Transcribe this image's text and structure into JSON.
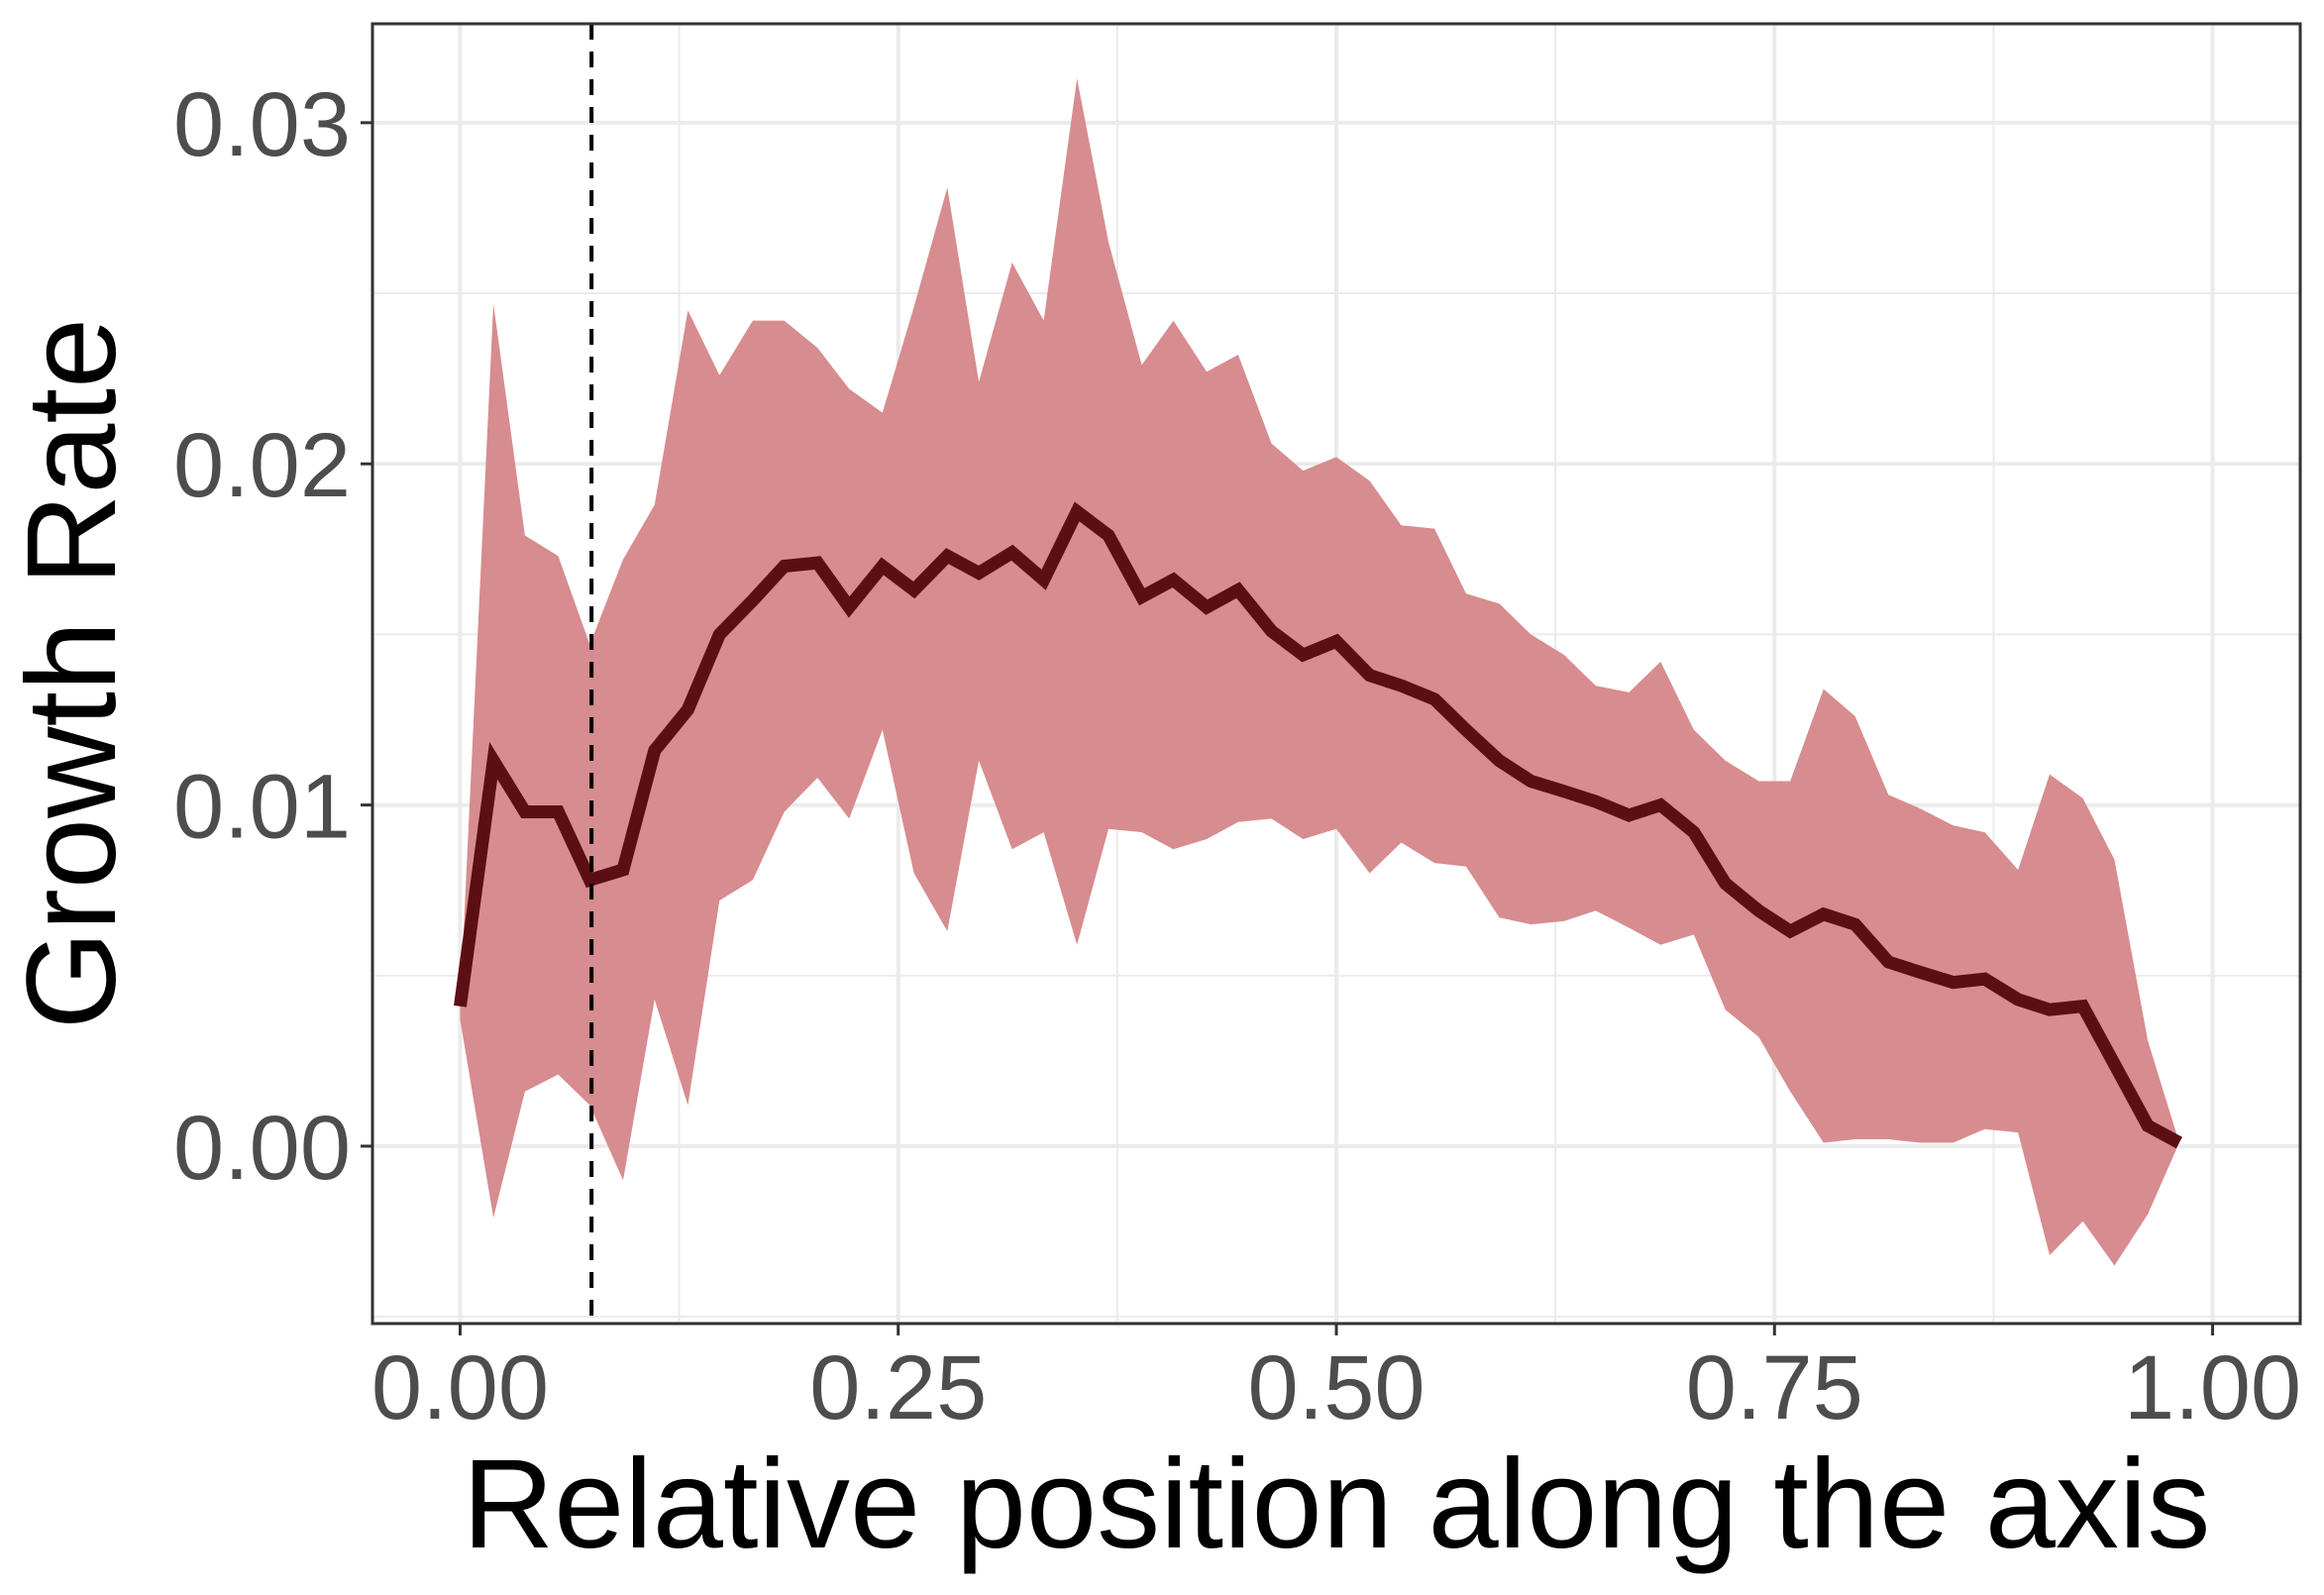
{
  "chart_data": {
    "type": "line",
    "xlabel": "Relative position along the axis",
    "ylabel": "Growth Rate",
    "xlim": [
      -0.05,
      1.05
    ],
    "ylim": [
      -0.0052,
      0.0329
    ],
    "x_ticks": [
      0,
      0.25,
      0.5,
      0.75,
      1
    ],
    "x_tick_labels": [
      "0.00",
      "0.25",
      "0.50",
      "0.75",
      "1.00"
    ],
    "y_ticks": [
      0,
      0.01,
      0.02,
      0.03
    ],
    "y_tick_labels": [
      "0.00",
      "0.01",
      "0.02",
      "0.03"
    ],
    "grid": true,
    "vline_x": 0.075,
    "colors": {
      "line": "#5c0f12",
      "band": "#d78c8f",
      "vline": "#000000",
      "grid": "#ebebeb"
    },
    "series": [
      {
        "x": [
          0,
          0.019,
          0.037,
          0.056,
          0.074,
          0.093,
          0.111,
          0.13,
          0.148,
          0.167,
          0.185,
          0.204,
          0.222,
          0.241,
          0.259,
          0.278,
          0.296,
          0.315,
          0.333,
          0.352,
          0.37,
          0.389,
          0.407,
          0.426,
          0.444,
          0.463,
          0.481,
          0.5,
          0.519,
          0.537,
          0.556,
          0.574,
          0.593,
          0.611,
          0.63,
          0.648,
          0.667,
          0.685,
          0.704,
          0.722,
          0.741,
          0.759,
          0.778,
          0.796,
          0.815,
          0.833,
          0.852,
          0.87,
          0.889,
          0.907,
          0.926,
          0.944,
          0.963,
          0.981,
          1.0
        ],
        "y": [
          0.0041,
          0.0113,
          0.0098,
          0.0098,
          0.0078,
          0.0081,
          0.0116,
          0.0128,
          0.015,
          0.016,
          0.017,
          0.0171,
          0.0158,
          0.017,
          0.0163,
          0.0173,
          0.0168,
          0.0174,
          0.0166,
          0.0186,
          0.0179,
          0.0161,
          0.0166,
          0.0158,
          0.0163,
          0.0151,
          0.0144,
          0.0148,
          0.0138,
          0.0135,
          0.0131,
          0.0122,
          0.0113,
          0.0107,
          0.0104,
          0.0101,
          0.0097,
          0.01,
          0.0092,
          0.0077,
          0.0069,
          0.0063,
          0.0068,
          0.0065,
          0.0054,
          0.0051,
          0.0048,
          0.0049,
          0.0043,
          0.004,
          0.0041,
          0.0024,
          0.0006,
          0.0001,
          null
        ],
        "lower": [
          0.0037,
          -0.0021,
          0.0016,
          0.0021,
          0.0012,
          -0.001,
          0.0043,
          0.0012,
          0.0072,
          0.0078,
          0.0098,
          0.0108,
          0.0096,
          0.0122,
          0.008,
          0.0063,
          0.0113,
          0.0087,
          0.0092,
          0.0059,
          0.0093,
          0.0092,
          0.0087,
          0.009,
          0.0095,
          0.0096,
          0.009,
          0.0093,
          0.008,
          0.0089,
          0.0083,
          0.0082,
          0.0067,
          0.0065,
          0.0066,
          0.0069,
          0.0064,
          0.0059,
          0.0062,
          0.004,
          0.0032,
          0.0016,
          0.0001,
          0.0002,
          0.0002,
          0.0001,
          0.0001,
          0.0005,
          0.0004,
          -0.0032,
          -0.0022,
          -0.0035,
          -0.002,
          0.0001,
          null
        ],
        "upper": [
          0.0042,
          0.0247,
          0.0179,
          0.0173,
          0.0147,
          0.0172,
          0.0188,
          0.0245,
          0.0226,
          0.0242,
          0.0242,
          0.0234,
          0.0222,
          0.0215,
          0.0246,
          0.0281,
          0.0224,
          0.0259,
          0.0242,
          0.0313,
          0.0265,
          0.0229,
          0.0242,
          0.0227,
          0.0232,
          0.0206,
          0.0198,
          0.0202,
          0.0195,
          0.0182,
          0.0181,
          0.0162,
          0.0159,
          0.015,
          0.0144,
          0.0135,
          0.0133,
          0.0142,
          0.0122,
          0.0113,
          0.0107,
          0.0107,
          0.0134,
          0.0126,
          0.0103,
          0.0099,
          0.0094,
          0.0092,
          0.0081,
          0.0109,
          0.0102,
          0.0084,
          0.0031,
          0.0001,
          null
        ]
      }
    ]
  }
}
